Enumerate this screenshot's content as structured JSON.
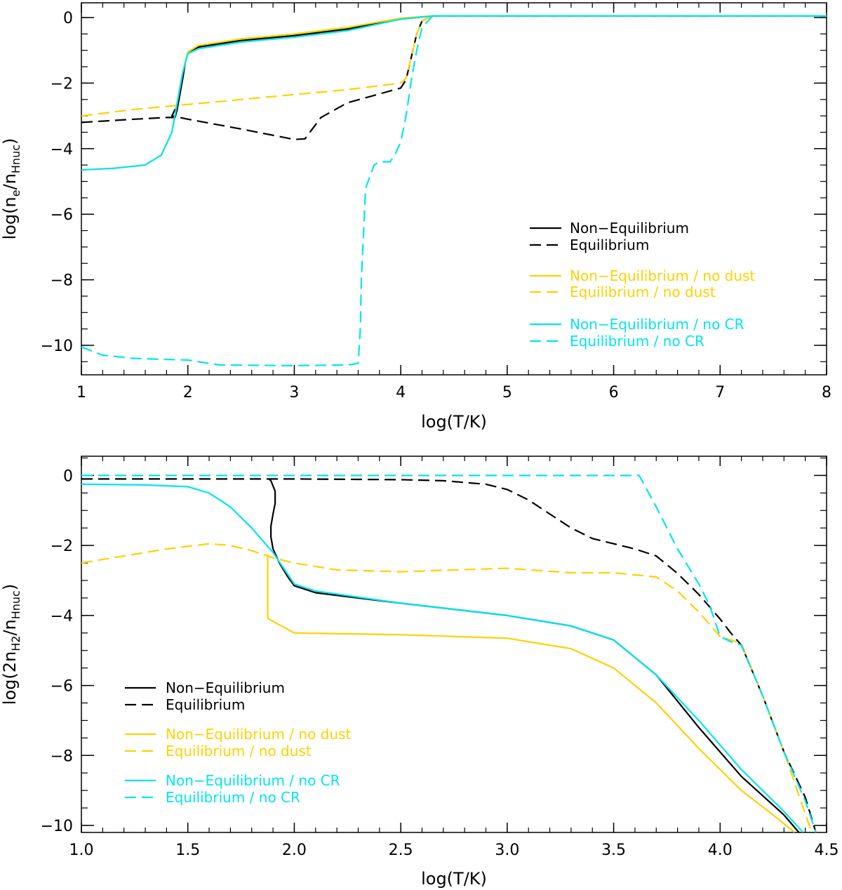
{
  "chart_data": [
    {
      "type": "line",
      "xlabel": "log(T/K)",
      "ylabel": {
        "main": "log(n",
        "sub1": "e",
        "mid": "/n",
        "sub2": "Hnuc",
        "end": ")"
      },
      "xlim": [
        1,
        8
      ],
      "ylim": [
        -10.9,
        0.45
      ],
      "xticks": [
        1,
        2,
        3,
        4,
        5,
        6,
        7,
        8
      ],
      "xtick_labels": [
        "1",
        "2",
        "3",
        "4",
        "5",
        "6",
        "7",
        "8"
      ],
      "xminor_step": 0.2,
      "yticks": [
        0,
        -2,
        -4,
        -6,
        -8,
        -10
      ],
      "ytick_labels": [
        "0",
        "−2",
        "−4",
        "−6",
        "−8",
        "−10"
      ],
      "yminor_step": 0.5,
      "legend_position": "center-right",
      "legend": [
        {
          "label": "Non−Equilibrium",
          "color": "#000000",
          "style": "solid"
        },
        {
          "label": "Equilibrium",
          "color": "#000000",
          "style": "dashed"
        },
        {
          "label": "Non−Equilibrium / no dust",
          "color": "#ffd000",
          "style": "solid"
        },
        {
          "label": "Equilibrium / no dust",
          "color": "#ffd000",
          "style": "dashed"
        },
        {
          "label": "Non−Equilibrium / no CR",
          "color": "#00e5f0",
          "style": "solid"
        },
        {
          "label": "Equilibrium / no CR",
          "color": "#00e5f0",
          "style": "dashed"
        }
      ],
      "series": [
        {
          "name": "Non-Equilibrium",
          "color": "#000000",
          "style": "solid",
          "x": [
            1.88,
            1.9,
            1.95,
            1.98,
            2.0,
            2.1,
            2.5,
            3.0,
            3.5,
            4.0,
            4.3,
            5.0,
            6.0,
            7.0,
            8.0
          ],
          "y": [
            -3.05,
            -2.8,
            -1.9,
            -1.3,
            -1.1,
            -0.9,
            -0.7,
            -0.55,
            -0.35,
            -0.05,
            0.05,
            0.05,
            0.05,
            0.05,
            0.05
          ]
        },
        {
          "name": "Equilibrium",
          "color": "#000000",
          "style": "dashed",
          "x": [
            1.0,
            1.5,
            1.8,
            1.88,
            1.88,
            1.85,
            2.0,
            2.5,
            3.0,
            3.1,
            3.25,
            3.5,
            4.0,
            4.05,
            4.1,
            4.15,
            4.2,
            4.3,
            5.0,
            8.0
          ],
          "y": [
            -3.2,
            -3.1,
            -3.05,
            -3.05,
            -2.8,
            -3.0,
            -3.1,
            -3.4,
            -3.72,
            -3.7,
            -3.05,
            -2.6,
            -2.15,
            -1.9,
            -1.2,
            -0.5,
            -0.1,
            0.05,
            0.05,
            0.05
          ]
        },
        {
          "name": "Non-Equilibrium / no dust",
          "color": "#ffd000",
          "style": "solid",
          "x": [
            1.0,
            1.3,
            1.6,
            1.75,
            1.85,
            1.95,
            2.0,
            2.1,
            2.5,
            3.0,
            3.5,
            4.0,
            4.3,
            5.0,
            8.0
          ],
          "y": [
            -4.65,
            -4.6,
            -4.5,
            -4.2,
            -3.5,
            -1.7,
            -1.05,
            -0.85,
            -0.65,
            -0.5,
            -0.3,
            -0.02,
            0.05,
            0.05,
            0.05
          ]
        },
        {
          "name": "Equilibrium / no dust",
          "color": "#ffd000",
          "style": "dashed",
          "x": [
            1.0,
            1.5,
            2.0,
            2.5,
            3.0,
            3.5,
            4.0,
            4.05,
            4.1,
            4.15,
            4.2,
            4.3,
            5.0,
            8.0
          ],
          "y": [
            -3.0,
            -2.8,
            -2.65,
            -2.5,
            -2.35,
            -2.2,
            -2.0,
            -1.85,
            -1.2,
            -0.5,
            -0.1,
            0.05,
            0.05,
            0.05
          ]
        },
        {
          "name": "Non-Equilibrium / no CR",
          "color": "#00e5f0",
          "style": "solid",
          "x": [
            1.0,
            1.3,
            1.6,
            1.75,
            1.85,
            1.95,
            2.0,
            2.1,
            2.5,
            3.0,
            3.5,
            4.0,
            4.3,
            5.0,
            8.0
          ],
          "y": [
            -4.65,
            -4.6,
            -4.5,
            -4.2,
            -3.5,
            -1.7,
            -1.1,
            -0.95,
            -0.75,
            -0.6,
            -0.4,
            -0.05,
            0.05,
            0.05,
            0.05
          ]
        },
        {
          "name": "Equilibrium / no CR",
          "color": "#00e5f0",
          "style": "dashed",
          "x": [
            1.0,
            1.2,
            1.5,
            2.0,
            2.3,
            3.0,
            3.5,
            3.6,
            3.62,
            3.63,
            3.67,
            3.75,
            3.8,
            3.9,
            3.95,
            4.0,
            4.05,
            4.1,
            4.15,
            4.2,
            4.3,
            5.0,
            8.0
          ],
          "y": [
            -10.05,
            -10.3,
            -10.4,
            -10.45,
            -10.6,
            -10.62,
            -10.6,
            -10.55,
            -9.5,
            -8.0,
            -5.2,
            -4.5,
            -4.4,
            -4.4,
            -4.15,
            -3.8,
            -3.0,
            -1.9,
            -1.0,
            -0.3,
            0.05,
            0.05,
            0.05
          ]
        }
      ]
    },
    {
      "type": "line",
      "xlabel": "log(T/K)",
      "ylabel": {
        "main": "log(2n",
        "sub1": "H2",
        "mid": "/n",
        "sub2": "Hnuc",
        "end": ")"
      },
      "xlim": [
        1.0,
        4.5
      ],
      "ylim": [
        -10.2,
        0.55
      ],
      "xticks": [
        1.0,
        1.5,
        2.0,
        2.5,
        3.0,
        3.5,
        4.0,
        4.5
      ],
      "xtick_labels": [
        "1.0",
        "1.5",
        "2.0",
        "2.5",
        "3.0",
        "3.5",
        "4.0",
        "4.5"
      ],
      "xminor_step": 0.1,
      "yticks": [
        0,
        -2,
        -4,
        -6,
        -8,
        -10
      ],
      "ytick_labels": [
        "0",
        "−2",
        "−4",
        "−6",
        "−8",
        "−10"
      ],
      "yminor_step": 0.5,
      "legend_position": "bottom-left",
      "legend": [
        {
          "label": "Non−Equilibrium",
          "color": "#000000",
          "style": "solid"
        },
        {
          "label": "Equilibrium",
          "color": "#000000",
          "style": "dashed"
        },
        {
          "label": "Non−Equilibrium / no dust",
          "color": "#ffd000",
          "style": "solid"
        },
        {
          "label": "Equilibrium / no dust",
          "color": "#ffd000",
          "style": "dashed"
        },
        {
          "label": "Non−Equilibrium / no CR",
          "color": "#00e5f0",
          "style": "solid"
        },
        {
          "label": "Equilibrium / no CR",
          "color": "#00e5f0",
          "style": "dashed"
        }
      ],
      "series": [
        {
          "name": "Non-Equilibrium",
          "color": "#000000",
          "style": "solid",
          "x": [
            1.88,
            1.89,
            1.91,
            1.91,
            1.9,
            1.89,
            1.89,
            1.9,
            1.93,
            1.97,
            2.0,
            2.1,
            2.5,
            3.0,
            3.3,
            3.5,
            3.7,
            3.9,
            4.1,
            4.3,
            4.37
          ],
          "y": [
            -0.1,
            -0.15,
            -0.45,
            -0.8,
            -1.1,
            -1.45,
            -1.75,
            -2.1,
            -2.5,
            -2.9,
            -3.15,
            -3.35,
            -3.65,
            -4.0,
            -4.3,
            -4.7,
            -5.7,
            -7.2,
            -8.6,
            -9.7,
            -10.2
          ]
        },
        {
          "name": "Equilibrium",
          "color": "#000000",
          "style": "dashed",
          "x": [
            1.0,
            1.5,
            2.0,
            2.5,
            2.7,
            2.9,
            3.0,
            3.1,
            3.2,
            3.3,
            3.4,
            3.5,
            3.6,
            3.7,
            3.8,
            3.9,
            4.0,
            4.05,
            4.1,
            4.2,
            4.3,
            4.4,
            4.45
          ],
          "y": [
            -0.1,
            -0.1,
            -0.1,
            -0.12,
            -0.15,
            -0.25,
            -0.4,
            -0.7,
            -1.1,
            -1.5,
            -1.8,
            -1.95,
            -2.1,
            -2.3,
            -2.8,
            -3.4,
            -4.1,
            -4.5,
            -4.85,
            -6.3,
            -7.9,
            -9.2,
            -10.2
          ]
        },
        {
          "name": "Non-Equilibrium / no dust",
          "color": "#ffd000",
          "style": "solid",
          "x": [
            1.875,
            1.875,
            1.88,
            2.0,
            2.5,
            3.0,
            3.3,
            3.5,
            3.7,
            3.9,
            4.1,
            4.25,
            4.35
          ],
          "y": [
            -2.25,
            -4.05,
            -4.1,
            -4.5,
            -4.55,
            -4.65,
            -4.95,
            -5.5,
            -6.5,
            -7.8,
            -9.0,
            -9.7,
            -10.2
          ]
        },
        {
          "name": "Equilibrium / no dust",
          "color": "#ffd000",
          "style": "dashed",
          "x": [
            1.0,
            1.2,
            1.4,
            1.6,
            1.7,
            1.8,
            1.9,
            2.0,
            2.2,
            2.5,
            3.0,
            3.3,
            3.5,
            3.7,
            3.8,
            3.9,
            4.0,
            4.1,
            4.2,
            4.3,
            4.43
          ],
          "y": [
            -2.5,
            -2.3,
            -2.1,
            -1.95,
            -2.0,
            -2.15,
            -2.35,
            -2.5,
            -2.7,
            -2.75,
            -2.65,
            -2.78,
            -2.78,
            -2.9,
            -3.3,
            -3.9,
            -4.6,
            -4.8,
            -6.3,
            -7.9,
            -10.2
          ]
        },
        {
          "name": "Non-Equilibrium / no CR",
          "color": "#00e5f0",
          "style": "solid",
          "x": [
            1.0,
            1.3,
            1.5,
            1.6,
            1.7,
            1.8,
            1.9,
            2.0,
            2.1,
            2.5,
            3.0,
            3.3,
            3.5,
            3.7,
            3.9,
            4.1,
            4.3,
            4.39
          ],
          "y": [
            -0.25,
            -0.27,
            -0.32,
            -0.5,
            -0.9,
            -1.5,
            -2.2,
            -3.1,
            -3.3,
            -3.65,
            -4.0,
            -4.3,
            -4.7,
            -5.7,
            -7.0,
            -8.4,
            -9.6,
            -10.2
          ]
        },
        {
          "name": "Equilibrium / no CR",
          "color": "#00e5f0",
          "style": "dashed",
          "x": [
            1.0,
            1.5,
            2.0,
            2.5,
            3.0,
            3.5,
            3.62,
            3.7,
            3.8,
            3.9,
            3.95,
            4.0,
            4.05,
            4.1,
            4.2,
            4.3,
            4.4,
            4.45
          ],
          "y": [
            0.0,
            0.0,
            0.0,
            0.0,
            0.0,
            0.0,
            0.0,
            -0.9,
            -2.1,
            -3.1,
            -3.7,
            -4.6,
            -4.75,
            -4.85,
            -6.3,
            -7.9,
            -9.3,
            -10.2
          ]
        }
      ]
    }
  ]
}
